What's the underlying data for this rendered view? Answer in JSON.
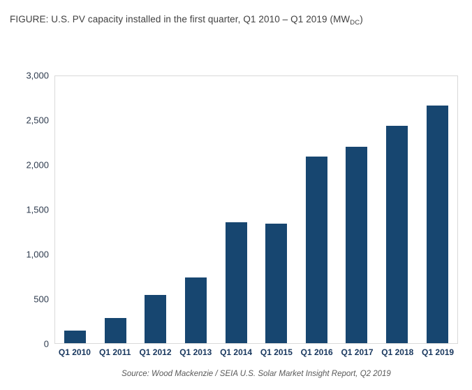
{
  "figure": {
    "title_prefix": "FIGURE: U.S. PV capacity installed in the first quarter, Q1 2010 – Q1 2019 (MW",
    "title_subscript": "DC",
    "title_suffix": ")",
    "source": "Source: Wood Mackenzie / SEIA U.S. Solar Market Insight Report, Q2 2019"
  },
  "chart_data": {
    "type": "bar",
    "title": "U.S. PV capacity installed in the first quarter, Q1 2010 – Q1 2019 (MWDC)",
    "categories": [
      "Q1 2010",
      "Q1 2011",
      "Q1 2012",
      "Q1 2013",
      "Q1 2014",
      "Q1 2015",
      "Q1 2016",
      "Q1 2017",
      "Q1 2018",
      "Q1 2019"
    ],
    "values": [
      140,
      280,
      540,
      740,
      1360,
      1340,
      2100,
      2210,
      2440,
      2670
    ],
    "xlabel": "",
    "ylabel": "",
    "ylim": [
      0,
      3000
    ],
    "yticks": [
      0,
      500,
      1000,
      1500,
      2000,
      2500,
      3000
    ],
    "ytick_labels": [
      "0",
      "500",
      "1,000",
      "1,500",
      "2,000",
      "2,500",
      "3,000"
    ],
    "bar_color": "#174670",
    "grid": false,
    "legend": false
  }
}
